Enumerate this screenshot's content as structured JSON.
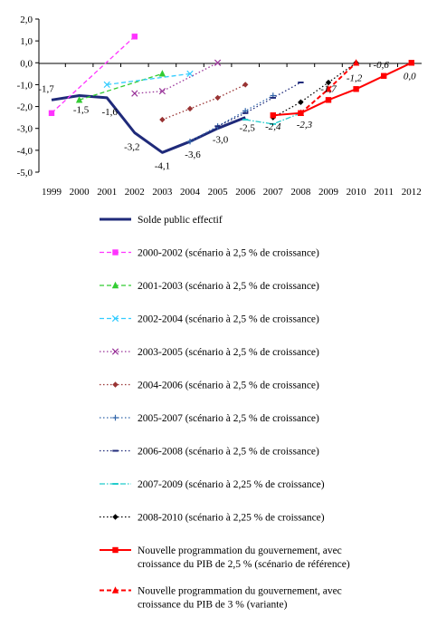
{
  "chart_data": {
    "type": "line",
    "title": "",
    "xlabel": "",
    "ylabel": "",
    "x": [
      1999,
      2000,
      2001,
      2002,
      2003,
      2004,
      2005,
      2006,
      2007,
      2008,
      2009,
      2010,
      2011,
      2012
    ],
    "x_ticks": [
      "1999",
      "2000",
      "2001",
      "2002",
      "2003",
      "2004",
      "2005",
      "2006",
      "2007",
      "2008",
      "2009",
      "2010",
      "2011",
      "2012"
    ],
    "ylim": [
      -5.0,
      2.0
    ],
    "y_ticks": [
      "2,0",
      "1,0",
      "0,0",
      "-1,0",
      "-2,0",
      "-3,0",
      "-4,0",
      "-5,0"
    ],
    "y_tick_values": [
      2,
      1,
      0,
      -1,
      -2,
      -3,
      -4,
      -5
    ],
    "grid": false,
    "legend_position": "bottom",
    "series": [
      {
        "name": "Solde public effectif",
        "color": "#1f2a7a",
        "style": "solid",
        "width": 3,
        "marker": "none",
        "points": [
          [
            1999,
            -1.7
          ],
          [
            2000,
            -1.5
          ],
          [
            2001,
            -1.6
          ],
          [
            2002,
            -3.2
          ],
          [
            2003,
            -4.1
          ],
          [
            2004,
            -3.6
          ],
          [
            2005,
            -3.0
          ],
          [
            2006,
            -2.5
          ]
        ]
      },
      {
        "name": "2000-2002 (scénario à 2,5 % de croissance)",
        "color": "#ff33ff",
        "style": "dashed",
        "width": 1.3,
        "marker": "square",
        "points": [
          [
            1999,
            -2.3
          ],
          [
            2002,
            1.2
          ]
        ]
      },
      {
        "name": "2001-2003 (scénario à 2,5 % de croissance)",
        "color": "#33cc33",
        "style": "dashed",
        "width": 1.3,
        "marker": "triangle",
        "points": [
          [
            2000,
            -1.7
          ],
          [
            2003,
            -0.5
          ]
        ]
      },
      {
        "name": "2002-2004 (scénario à 2,5 % de croissance)",
        "color": "#33ccff",
        "style": "dashed",
        "width": 1.3,
        "marker": "x",
        "points": [
          [
            2001,
            -1.0
          ],
          [
            2004,
            -0.5
          ]
        ]
      },
      {
        "name": "2003-2005 (scénario à 2,5 % de croissance)",
        "color": "#993399",
        "style": "dotted",
        "width": 1.3,
        "marker": "x",
        "points": [
          [
            2002,
            -1.4
          ],
          [
            2003,
            -1.3
          ],
          [
            2005,
            0.0
          ]
        ]
      },
      {
        "name": "2004-2006 (scénario à 2,5 % de croissance)",
        "color": "#993333",
        "style": "dotted",
        "width": 1.3,
        "marker": "diamond",
        "points": [
          [
            2003,
            -2.6
          ],
          [
            2004,
            -2.1
          ],
          [
            2005,
            -1.6
          ],
          [
            2006,
            -1.0
          ]
        ]
      },
      {
        "name": "2005-2007 (scénario à 2,5 % de croissance)",
        "color": "#3366aa",
        "style": "dotted",
        "width": 1.3,
        "marker": "plus",
        "points": [
          [
            2004,
            -3.6
          ],
          [
            2005,
            -2.9
          ],
          [
            2006,
            -2.2
          ],
          [
            2007,
            -1.5
          ]
        ]
      },
      {
        "name": "2006-2008 (scénario à 2,5 % de croissance)",
        "color": "#1f2a7a",
        "style": "dotted",
        "width": 1.3,
        "marker": "dash",
        "points": [
          [
            2005,
            -2.9
          ],
          [
            2006,
            -2.3
          ],
          [
            2007,
            -1.6
          ],
          [
            2008,
            -0.9
          ]
        ]
      },
      {
        "name": "2007-2009 (scénario à 2,25 % de croissance)",
        "color": "#22cccc",
        "style": "dashdot",
        "width": 1.3,
        "marker": "dash",
        "points": [
          [
            2006,
            -2.6
          ],
          [
            2007,
            -2.8
          ],
          [
            2008,
            -2.3
          ],
          [
            2009,
            -1.7
          ]
        ]
      },
      {
        "name": "2008-2010 (scénario à 2,25 % de croissance)",
        "color": "#000000",
        "style": "dotted",
        "width": 1.3,
        "marker": "diamond",
        "points": [
          [
            2007,
            -2.5
          ],
          [
            2008,
            -1.8
          ],
          [
            2009,
            -0.9
          ],
          [
            2010,
            0.0
          ]
        ]
      },
      {
        "name": "Nouvelle programmation du gouvernement, avec croissance du PIB de 2,5 % (scénario de référence)",
        "color": "#ff0000",
        "style": "solid",
        "width": 2,
        "marker": "square",
        "points": [
          [
            2007,
            -2.4
          ],
          [
            2008,
            -2.3
          ],
          [
            2009,
            -1.7
          ],
          [
            2010,
            -1.2
          ],
          [
            2011,
            -0.6
          ],
          [
            2012,
            0.0
          ]
        ]
      },
      {
        "name": "Nouvelle programmation du gouvernement, avec croissance du PIB de 3 % (variante)",
        "color": "#ff0000",
        "style": "dashed",
        "width": 2,
        "marker": "triangle",
        "points": [
          [
            2008,
            -2.3
          ],
          [
            2009,
            -1.2
          ],
          [
            2010,
            0.0
          ]
        ]
      }
    ],
    "legend_lines": [
      [
        "Solde public effectif"
      ],
      [
        "2000-2002 (scénario à 2,5 % de croissance)"
      ],
      [
        "2001-2003 (scénario à 2,5 % de croissance)"
      ],
      [
        "2002-2004 (scénario à 2,5 % de croissance)"
      ],
      [
        "2003-2005 (scénario à 2,5 % de croissance)"
      ],
      [
        "2004-2006 (scénario à 2,5 % de croissance)"
      ],
      [
        "2005-2007 (scénario à 2,5 % de croissance)"
      ],
      [
        "2006-2008 (scénario à 2,5 % de croissance)"
      ],
      [
        "2007-2009 (scénario à 2,25 % de croissance)"
      ],
      [
        "2008-2010 (scénario à 2,25 % de croissance)"
      ],
      [
        "Nouvelle programmation du gouvernement, avec",
        "croissance du PIB de 2,5 % (scénario de référence)"
      ],
      [
        "Nouvelle programmation du gouvernement, avec",
        "croissance du PIB de 3 % (variante)"
      ]
    ],
    "data_labels": [
      {
        "x": 1999,
        "y": -1.7,
        "text": "-1,7",
        "italic": false
      },
      {
        "x": 2000,
        "y": -1.5,
        "text": "-1,5",
        "italic": false
      },
      {
        "x": 2001,
        "y": -1.6,
        "text": "-1,6",
        "italic": false
      },
      {
        "x": 2002,
        "y": -3.2,
        "text": "-3,2",
        "italic": false
      },
      {
        "x": 2003,
        "y": -4.1,
        "text": "-4,1",
        "italic": false
      },
      {
        "x": 2004,
        "y": -3.6,
        "text": "-3,6",
        "italic": false
      },
      {
        "x": 2005,
        "y": -3.0,
        "text": "-3,0",
        "italic": false
      },
      {
        "x": 2006,
        "y": -2.5,
        "text": "-2,5",
        "italic": false
      },
      {
        "x": 2007,
        "y": -2.4,
        "text": "-2,4",
        "italic": true
      },
      {
        "x": 2008,
        "y": -2.3,
        "text": "-2,3",
        "italic": true
      },
      {
        "x": 2009,
        "y": -1.7,
        "text": "-1,7",
        "italic": true
      },
      {
        "x": 2010,
        "y": -1.2,
        "text": "-1,2",
        "italic": true
      },
      {
        "x": 2011,
        "y": -0.6,
        "text": "-0,6",
        "italic": true
      },
      {
        "x": 2012,
        "y": 0.0,
        "text": "0,0",
        "italic": true
      }
    ]
  }
}
